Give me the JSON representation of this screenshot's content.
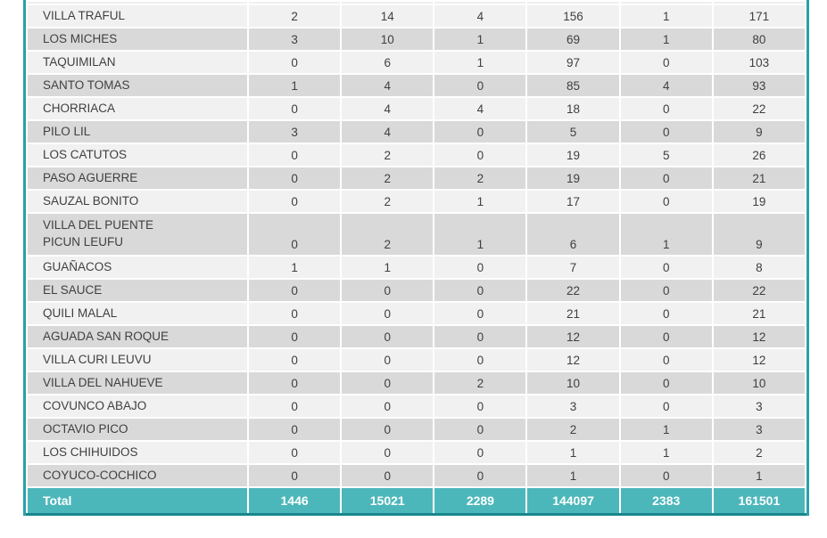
{
  "table": {
    "rows": [
      {
        "name": "VILLA TRAFUL",
        "values": [
          2,
          14,
          4,
          156,
          1,
          171
        ]
      },
      {
        "name": "LOS MICHES",
        "values": [
          3,
          10,
          1,
          69,
          1,
          80
        ]
      },
      {
        "name": "TAQUIMILAN",
        "values": [
          0,
          6,
          1,
          97,
          0,
          103
        ]
      },
      {
        "name": "SANTO TOMAS",
        "values": [
          1,
          4,
          0,
          85,
          4,
          93
        ]
      },
      {
        "name": "CHORRIACA",
        "values": [
          0,
          4,
          4,
          18,
          0,
          22
        ]
      },
      {
        "name": "PILO LIL",
        "values": [
          3,
          4,
          0,
          5,
          0,
          9
        ]
      },
      {
        "name": "LOS CATUTOS",
        "values": [
          0,
          2,
          0,
          19,
          5,
          26
        ]
      },
      {
        "name": "PASO AGUERRE",
        "values": [
          0,
          2,
          2,
          19,
          0,
          21
        ]
      },
      {
        "name": "SAUZAL BONITO",
        "values": [
          0,
          2,
          1,
          17,
          0,
          19
        ]
      },
      {
        "name": "VILLA DEL PUENTE\nPICUN LEUFU",
        "values": [
          0,
          2,
          1,
          6,
          1,
          9
        ]
      },
      {
        "name": "GUAÑACOS",
        "values": [
          1,
          1,
          0,
          7,
          0,
          8
        ]
      },
      {
        "name": "EL SAUCE",
        "values": [
          0,
          0,
          0,
          22,
          0,
          22
        ]
      },
      {
        "name": "QUILI MALAL",
        "values": [
          0,
          0,
          0,
          21,
          0,
          21
        ]
      },
      {
        "name": "AGUADA SAN ROQUE",
        "values": [
          0,
          0,
          0,
          12,
          0,
          12
        ]
      },
      {
        "name": "VILLA CURI LEUVU",
        "values": [
          0,
          0,
          0,
          12,
          0,
          12
        ]
      },
      {
        "name": "VILLA DEL NAHUEVE",
        "values": [
          0,
          0,
          2,
          10,
          0,
          10
        ]
      },
      {
        "name": "COVUNCO ABAJO",
        "values": [
          0,
          0,
          0,
          3,
          0,
          3
        ]
      },
      {
        "name": "OCTAVIO PICO",
        "values": [
          0,
          0,
          0,
          2,
          1,
          3
        ]
      },
      {
        "name": "LOS CHIHUIDOS",
        "values": [
          0,
          0,
          0,
          1,
          1,
          2
        ]
      },
      {
        "name": "COYUCO-COCHICO",
        "values": [
          0,
          0,
          0,
          1,
          0,
          1
        ]
      }
    ],
    "total": {
      "label": "Total",
      "values": [
        1446,
        15021,
        2289,
        144097,
        2383,
        161501
      ]
    },
    "colors": {
      "band_light": "#f1f1f1",
      "band_dark": "#d9d9d9",
      "total_bg": "#4cb7bb",
      "frame_teal": "#2ba0a8",
      "frame_bottom": "#17868e",
      "total_text": "#ffffff",
      "body_text": "#3f3f3f"
    }
  }
}
